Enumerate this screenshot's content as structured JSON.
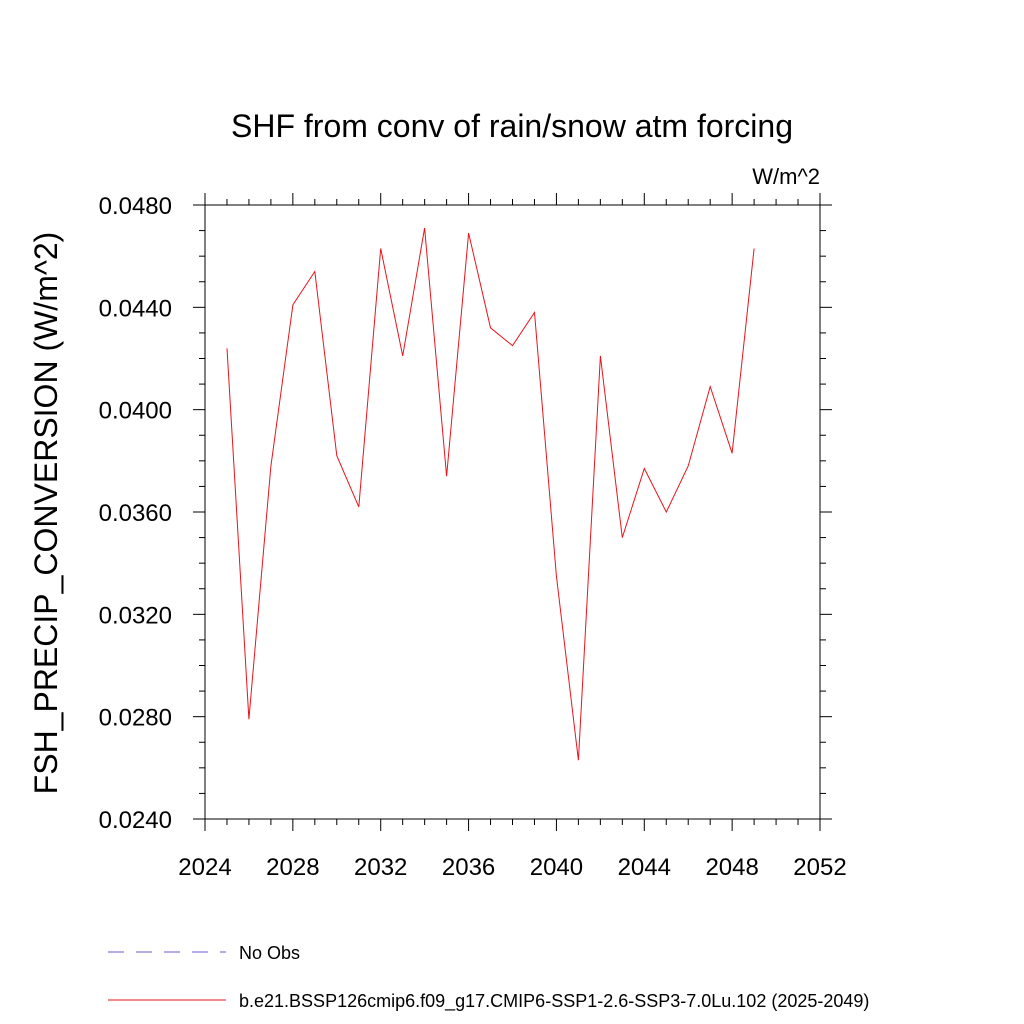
{
  "chart_data": {
    "type": "line",
    "title": "SHF from conv of rain/snow atm forcing",
    "units_label": "W/m^2",
    "ylabel": "FSH_PRECIP_CONVERSION  (W/m^2)",
    "xlabel": "",
    "xlim": [
      2024,
      2052
    ],
    "ylim": [
      0.024,
      0.048
    ],
    "x_ticks": [
      2024,
      2028,
      2032,
      2036,
      2040,
      2044,
      2048,
      2052
    ],
    "x_tick_labels": [
      "2024",
      "2028",
      "2032",
      "2036",
      "2040",
      "2044",
      "2048",
      "2052"
    ],
    "y_ticks": [
      0.024,
      0.028,
      0.032,
      0.036,
      0.04,
      0.044,
      0.048
    ],
    "y_tick_labels": [
      "0.0240",
      "0.0280",
      "0.0320",
      "0.0360",
      "0.0400",
      "0.0440",
      "0.0480"
    ],
    "grid": false,
    "legend_position": "bottom",
    "series": [
      {
        "name": "b.e21.BSSP126cmip6.f09_g17.CMIP6-SSP1-2.6-SSP3-7.0Lu.102 (2025-2049)",
        "color": "#e8141c",
        "style": "solid",
        "x": [
          2025,
          2026,
          2027,
          2028,
          2029,
          2030,
          2031,
          2032,
          2033,
          2034,
          2035,
          2036,
          2037,
          2038,
          2039,
          2040,
          2041,
          2042,
          2043,
          2044,
          2045,
          2046,
          2047,
          2048,
          2049
        ],
        "values": [
          0.0424,
          0.0279,
          0.0378,
          0.0441,
          0.0454,
          0.0382,
          0.0362,
          0.0463,
          0.0421,
          0.0471,
          0.0374,
          0.0469,
          0.0432,
          0.0425,
          0.0438,
          0.0335,
          0.0263,
          0.0421,
          0.035,
          0.0377,
          0.036,
          0.0378,
          0.0409,
          0.0383,
          0.0463
        ]
      }
    ],
    "legend": [
      {
        "label": "No Obs",
        "color": "#6a5acd",
        "style": "dashed"
      },
      {
        "label": "b.e21.BSSP126cmip6.f09_g17.CMIP6-SSP1-2.6-SSP3-7.0Lu.102 (2025-2049)",
        "color": "#e8141c",
        "style": "solid"
      }
    ]
  }
}
